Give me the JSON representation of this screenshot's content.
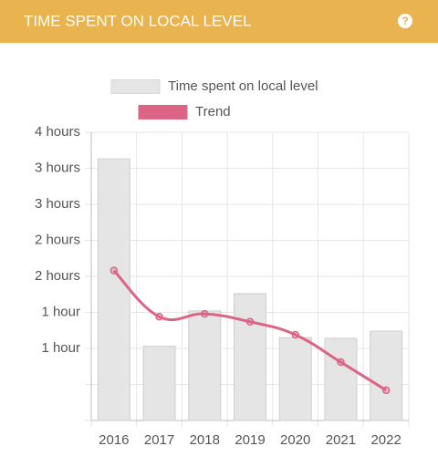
{
  "chart_data": {
    "type": "bar",
    "title": "TIME SPENT ON LOCAL LEVEL",
    "categories": [
      "2016",
      "2017",
      "2018",
      "2019",
      "2020",
      "2021",
      "2022"
    ],
    "series": [
      {
        "name": "Time spent on local level",
        "type": "bar",
        "color": "#e5e5e5",
        "values": [
          3.63,
          1.03,
          1.52,
          1.76,
          1.15,
          1.14,
          1.24
        ]
      },
      {
        "name": "Trend",
        "type": "line",
        "color": "#dc6585",
        "values": [
          2.08,
          1.44,
          1.48,
          1.37,
          1.19,
          0.81,
          0.42
        ]
      }
    ],
    "ylim": [
      0,
      4
    ],
    "yticks": [
      {
        "value": 0,
        "label": null
      },
      {
        "value": 0.5,
        "label": null
      },
      {
        "value": 1,
        "label": "1 hour"
      },
      {
        "value": 1.5,
        "label": "1 hour"
      },
      {
        "value": 2,
        "label": "2 hours"
      },
      {
        "value": 2.5,
        "label": "2 hours"
      },
      {
        "value": 3,
        "label": "3 hours"
      },
      {
        "value": 3.5,
        "label": "3 hours"
      },
      {
        "value": 4,
        "label": "4 hours"
      }
    ],
    "grid": true
  }
}
